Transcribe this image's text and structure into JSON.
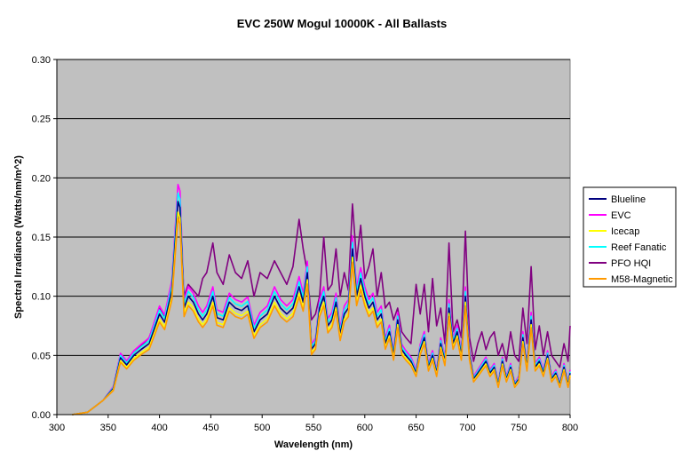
{
  "chart_data": {
    "type": "line",
    "title": "EVC 250W Mogul 10000K - All Ballasts",
    "xlabel": "Wavelength (nm)",
    "ylabel": "Spectral Irradiance (Watts/nm/m^2)",
    "xlim": [
      300,
      800
    ],
    "ylim": [
      0,
      0.3
    ],
    "x_ticks": [
      "300",
      "350",
      "400",
      "450",
      "500",
      "550",
      "600",
      "650",
      "700",
      "750",
      "800"
    ],
    "y_ticks": [
      "0.00",
      "0.05",
      "0.10",
      "0.15",
      "0.20",
      "0.25",
      "0.30"
    ],
    "grid": "horizontal",
    "legend_position": "right",
    "plot_background": "#c0c0c0",
    "x": [
      315,
      330,
      345,
      355,
      362,
      368,
      375,
      382,
      390,
      400,
      405,
      412,
      418,
      420,
      424,
      428,
      433,
      438,
      442,
      446,
      452,
      456,
      462,
      468,
      474,
      480,
      486,
      492,
      498,
      505,
      512,
      518,
      524,
      530,
      536,
      540,
      544,
      548,
      552,
      556,
      560,
      564,
      568,
      572,
      576,
      580,
      584,
      588,
      592,
      596,
      600,
      604,
      608,
      612,
      616,
      620,
      624,
      628,
      632,
      636,
      640,
      645,
      650,
      654,
      658,
      662,
      666,
      670,
      674,
      678,
      682,
      686,
      690,
      694,
      698,
      702,
      706,
      710,
      714,
      718,
      722,
      726,
      730,
      734,
      738,
      742,
      746,
      750,
      754,
      758,
      762,
      766,
      770,
      774,
      778,
      782,
      786,
      790,
      794,
      798,
      800
    ],
    "series": [
      {
        "name": "Blueline",
        "color": "#00007f",
        "offset": 0.0,
        "values": [
          0,
          0.002,
          0.012,
          0.022,
          0.048,
          0.042,
          0.05,
          0.055,
          0.06,
          0.085,
          0.078,
          0.105,
          0.18,
          0.175,
          0.09,
          0.1,
          0.095,
          0.085,
          0.08,
          0.085,
          0.1,
          0.082,
          0.08,
          0.095,
          0.09,
          0.088,
          0.092,
          0.07,
          0.08,
          0.085,
          0.1,
          0.09,
          0.085,
          0.09,
          0.108,
          0.095,
          0.12,
          0.055,
          0.06,
          0.09,
          0.1,
          0.075,
          0.08,
          0.095,
          0.068,
          0.085,
          0.09,
          0.14,
          0.1,
          0.115,
          0.1,
          0.09,
          0.095,
          0.08,
          0.085,
          0.06,
          0.07,
          0.05,
          0.08,
          0.055,
          0.05,
          0.045,
          0.035,
          0.055,
          0.065,
          0.04,
          0.05,
          0.035,
          0.06,
          0.045,
          0.09,
          0.06,
          0.07,
          0.05,
          0.1,
          0.05,
          0.03,
          0.035,
          0.04,
          0.045,
          0.035,
          0.04,
          0.025,
          0.045,
          0.03,
          0.04,
          0.025,
          0.03,
          0.065,
          0.04,
          0.08,
          0.04,
          0.045,
          0.035,
          0.05,
          0.03,
          0.035,
          0.025,
          0.04,
          0.025,
          0.035
        ]
      },
      {
        "name": "EVC",
        "color": "#ff00ff",
        "offset": 0.008,
        "values": [
          0,
          0.002,
          0.012,
          0.022,
          0.048,
          0.042,
          0.05,
          0.055,
          0.06,
          0.085,
          0.078,
          0.105,
          0.18,
          0.175,
          0.09,
          0.1,
          0.095,
          0.085,
          0.08,
          0.085,
          0.1,
          0.082,
          0.08,
          0.095,
          0.09,
          0.088,
          0.092,
          0.07,
          0.08,
          0.085,
          0.1,
          0.09,
          0.085,
          0.09,
          0.108,
          0.095,
          0.12,
          0.055,
          0.06,
          0.09,
          0.1,
          0.075,
          0.08,
          0.095,
          0.068,
          0.085,
          0.09,
          0.14,
          0.1,
          0.115,
          0.1,
          0.09,
          0.095,
          0.08,
          0.085,
          0.06,
          0.07,
          0.05,
          0.08,
          0.055,
          0.05,
          0.045,
          0.035,
          0.055,
          0.065,
          0.04,
          0.05,
          0.035,
          0.06,
          0.045,
          0.09,
          0.06,
          0.07,
          0.05,
          0.1,
          0.05,
          0.03,
          0.035,
          0.04,
          0.045,
          0.035,
          0.04,
          0.025,
          0.045,
          0.03,
          0.04,
          0.025,
          0.03,
          0.065,
          0.04,
          0.08,
          0.04,
          0.045,
          0.035,
          0.05,
          0.03,
          0.035,
          0.025,
          0.04,
          0.025,
          0.035
        ]
      },
      {
        "name": "Icecap",
        "color": "#ffff00",
        "offset": -0.005,
        "values": [
          0,
          0.002,
          0.012,
          0.022,
          0.048,
          0.042,
          0.05,
          0.055,
          0.06,
          0.085,
          0.078,
          0.105,
          0.18,
          0.175,
          0.09,
          0.1,
          0.095,
          0.085,
          0.08,
          0.085,
          0.1,
          0.082,
          0.08,
          0.095,
          0.09,
          0.088,
          0.092,
          0.07,
          0.08,
          0.085,
          0.1,
          0.09,
          0.085,
          0.09,
          0.108,
          0.095,
          0.12,
          0.055,
          0.06,
          0.09,
          0.1,
          0.075,
          0.08,
          0.095,
          0.068,
          0.085,
          0.09,
          0.14,
          0.1,
          0.115,
          0.1,
          0.09,
          0.095,
          0.08,
          0.085,
          0.06,
          0.07,
          0.05,
          0.08,
          0.055,
          0.05,
          0.045,
          0.035,
          0.055,
          0.065,
          0.04,
          0.05,
          0.035,
          0.06,
          0.045,
          0.09,
          0.06,
          0.07,
          0.05,
          0.1,
          0.05,
          0.03,
          0.035,
          0.04,
          0.045,
          0.035,
          0.04,
          0.025,
          0.045,
          0.03,
          0.04,
          0.025,
          0.03,
          0.065,
          0.04,
          0.08,
          0.04,
          0.045,
          0.035,
          0.05,
          0.03,
          0.035,
          0.025,
          0.04,
          0.025,
          0.035
        ]
      },
      {
        "name": "Reef Fanatic",
        "color": "#00ffff",
        "offset": 0.004,
        "values": [
          0,
          0.002,
          0.012,
          0.022,
          0.048,
          0.042,
          0.05,
          0.055,
          0.06,
          0.085,
          0.078,
          0.105,
          0.18,
          0.175,
          0.09,
          0.1,
          0.095,
          0.085,
          0.08,
          0.085,
          0.1,
          0.082,
          0.08,
          0.095,
          0.09,
          0.088,
          0.092,
          0.07,
          0.08,
          0.085,
          0.1,
          0.09,
          0.085,
          0.09,
          0.108,
          0.095,
          0.12,
          0.055,
          0.06,
          0.09,
          0.1,
          0.075,
          0.08,
          0.095,
          0.068,
          0.085,
          0.09,
          0.14,
          0.1,
          0.115,
          0.1,
          0.09,
          0.095,
          0.08,
          0.085,
          0.06,
          0.07,
          0.05,
          0.08,
          0.055,
          0.05,
          0.045,
          0.035,
          0.055,
          0.065,
          0.04,
          0.05,
          0.035,
          0.06,
          0.045,
          0.09,
          0.06,
          0.07,
          0.05,
          0.1,
          0.05,
          0.03,
          0.035,
          0.04,
          0.045,
          0.035,
          0.04,
          0.025,
          0.045,
          0.03,
          0.04,
          0.025,
          0.03,
          0.065,
          0.04,
          0.08,
          0.04,
          0.045,
          0.035,
          0.05,
          0.03,
          0.035,
          0.025,
          0.04,
          0.025,
          0.035
        ]
      },
      {
        "name": "PFO HQI",
        "color": "#800080",
        "offset": 0.0,
        "values": [
          0,
          0.002,
          0.012,
          0.022,
          0.05,
          0.045,
          0.052,
          0.058,
          0.065,
          0.09,
          0.082,
          0.11,
          0.17,
          0.165,
          0.1,
          0.11,
          0.105,
          0.1,
          0.115,
          0.12,
          0.145,
          0.12,
          0.11,
          0.135,
          0.12,
          0.115,
          0.13,
          0.1,
          0.12,
          0.115,
          0.13,
          0.12,
          0.11,
          0.125,
          0.165,
          0.14,
          0.12,
          0.08,
          0.085,
          0.1,
          0.15,
          0.105,
          0.11,
          0.14,
          0.1,
          0.12,
          0.105,
          0.178,
          0.13,
          0.16,
          0.115,
          0.125,
          0.14,
          0.1,
          0.12,
          0.09,
          0.095,
          0.08,
          0.09,
          0.07,
          0.065,
          0.06,
          0.11,
          0.085,
          0.11,
          0.07,
          0.115,
          0.075,
          0.09,
          0.06,
          0.145,
          0.07,
          0.08,
          0.065,
          0.155,
          0.065,
          0.045,
          0.06,
          0.07,
          0.055,
          0.065,
          0.07,
          0.05,
          0.06,
          0.045,
          0.07,
          0.05,
          0.045,
          0.09,
          0.06,
          0.125,
          0.055,
          0.075,
          0.05,
          0.07,
          0.05,
          0.045,
          0.04,
          0.06,
          0.045,
          0.075
        ]
      },
      {
        "name": "M58-Magnetic",
        "color": "#ff9900",
        "offset": -0.008,
        "values": [
          0,
          0.002,
          0.012,
          0.022,
          0.048,
          0.042,
          0.05,
          0.055,
          0.06,
          0.085,
          0.078,
          0.105,
          0.18,
          0.175,
          0.09,
          0.1,
          0.095,
          0.085,
          0.08,
          0.085,
          0.1,
          0.082,
          0.08,
          0.095,
          0.09,
          0.088,
          0.092,
          0.07,
          0.08,
          0.085,
          0.1,
          0.09,
          0.085,
          0.09,
          0.108,
          0.095,
          0.12,
          0.055,
          0.06,
          0.09,
          0.1,
          0.075,
          0.08,
          0.095,
          0.068,
          0.085,
          0.09,
          0.14,
          0.1,
          0.115,
          0.1,
          0.09,
          0.095,
          0.08,
          0.085,
          0.06,
          0.07,
          0.05,
          0.08,
          0.055,
          0.05,
          0.045,
          0.035,
          0.055,
          0.065,
          0.04,
          0.05,
          0.035,
          0.06,
          0.045,
          0.09,
          0.06,
          0.07,
          0.05,
          0.1,
          0.05,
          0.03,
          0.035,
          0.04,
          0.045,
          0.035,
          0.04,
          0.025,
          0.045,
          0.03,
          0.04,
          0.025,
          0.03,
          0.065,
          0.04,
          0.08,
          0.04,
          0.045,
          0.035,
          0.05,
          0.03,
          0.035,
          0.025,
          0.04,
          0.025,
          0.035
        ]
      }
    ]
  }
}
